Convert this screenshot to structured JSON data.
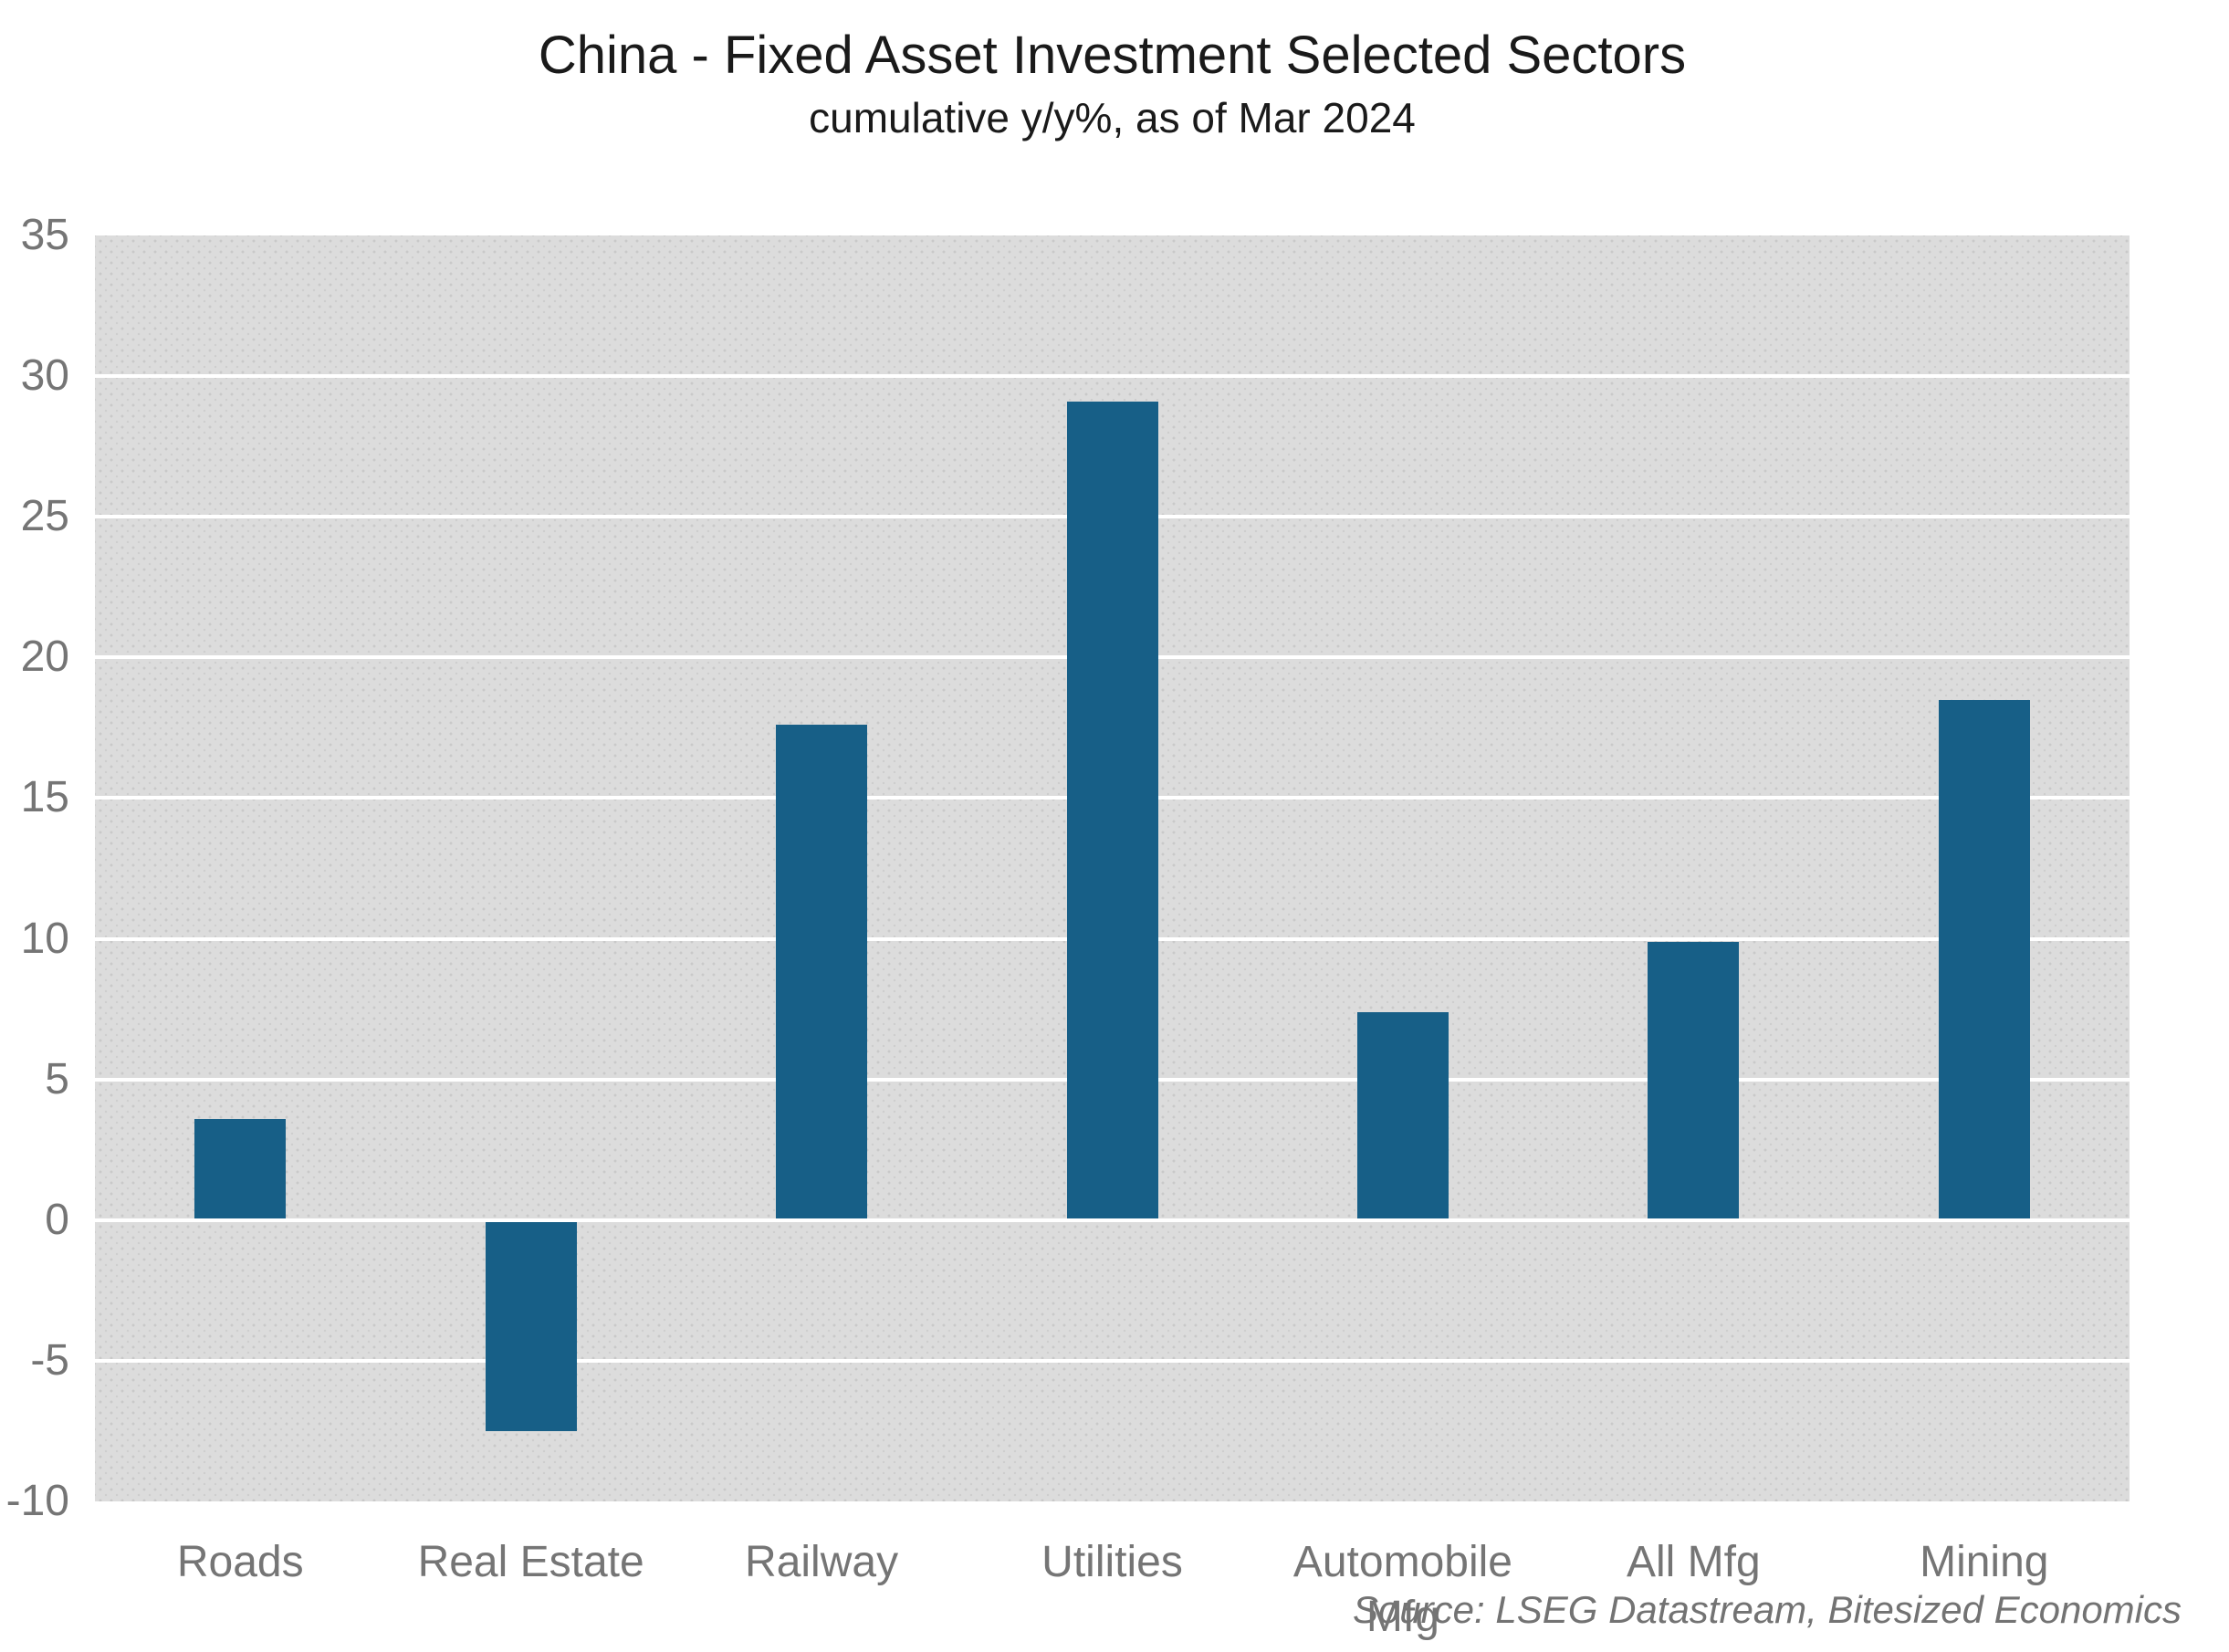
{
  "header": {
    "title": "China - Fixed Asset Investment Selected Sectors",
    "subtitle": "cumulative y/y%, as of Mar 2024"
  },
  "footer": {
    "source": "Source: LSEG Datastream, Bitesized Economics"
  },
  "chart_data": {
    "type": "bar",
    "title": "China - Fixed Asset Investment Selected Sectors",
    "subtitle": "cumulative y/y%, as of Mar 2024",
    "categories": [
      "Roads",
      "Real Estate",
      "Railway",
      "Utilities",
      "Automobile Mfg",
      "All Mfg",
      "Mining"
    ],
    "values": [
      3.6,
      -7.5,
      17.6,
      29.1,
      7.4,
      9.9,
      18.5
    ],
    "xlabel": "",
    "ylabel": "",
    "ylim": [
      -10,
      35
    ],
    "yticks": [
      35,
      30,
      25,
      20,
      15,
      10,
      5,
      0,
      -5,
      -10
    ],
    "grid": "horizontal-white-lines-on-gray-panel",
    "legend": "none",
    "colors": {
      "bar": "#175f87",
      "plot_background": "#dcdcdc",
      "plot_dots": "#c9c9c9",
      "gridline": "#ffffff",
      "tick_text": "#757575",
      "title_text": "#1a1a1a",
      "source_text": "#737373"
    },
    "source": "Source: LSEG Datastream, Bitesized Economics"
  }
}
